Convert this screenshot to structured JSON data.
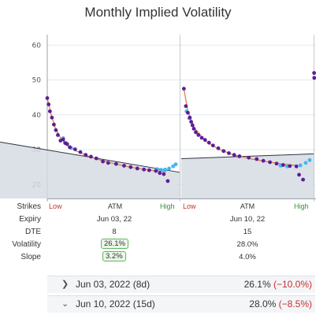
{
  "title": "Monthly Implied Volatility",
  "chart_data": {
    "type": "scatter",
    "ylim": [
      16,
      63
    ],
    "yticks": [
      20,
      30,
      40,
      50,
      60
    ],
    "grid": true,
    "panels": [
      {
        "x_labels": {
          "low": "Low",
          "atm": "ATM",
          "high": "High"
        },
        "smile_points": [
          [
            0.0,
            44.8
          ],
          [
            0.01,
            43.0
          ],
          [
            0.02,
            41.0
          ],
          [
            0.035,
            39.2
          ],
          [
            0.05,
            37.2
          ],
          [
            0.065,
            35.6
          ],
          [
            0.08,
            34.2
          ],
          [
            0.1,
            32.6
          ],
          [
            0.12,
            32.9
          ],
          [
            0.135,
            31.9
          ],
          [
            0.15,
            31.6
          ],
          [
            0.17,
            30.7
          ],
          [
            0.21,
            30.1
          ],
          [
            0.25,
            29.3
          ],
          [
            0.29,
            28.5
          ],
          [
            0.33,
            28.0
          ],
          [
            0.37,
            27.5
          ],
          [
            0.42,
            26.6
          ],
          [
            0.46,
            26.2
          ],
          [
            0.52,
            25.9
          ],
          [
            0.58,
            25.4
          ],
          [
            0.63,
            25.0
          ],
          [
            0.68,
            24.6
          ],
          [
            0.73,
            24.3
          ],
          [
            0.77,
            24.1
          ],
          [
            0.82,
            23.9
          ],
          [
            0.85,
            23.3
          ],
          [
            0.88,
            23.0
          ],
          [
            0.91,
            21.0
          ]
        ],
        "otm_points": [
          [
            0.12,
            33.3
          ],
          [
            0.14,
            31.9
          ],
          [
            0.18,
            30.5
          ],
          [
            0.83,
            24.4
          ],
          [
            0.86,
            24.2
          ],
          [
            0.89,
            24.3
          ],
          [
            0.92,
            24.6
          ],
          [
            0.95,
            25.2
          ],
          [
            0.97,
            25.8
          ]
        ],
        "fit_curve": [
          [
            0.0,
            44.8
          ],
          [
            0.03,
            40.0
          ],
          [
            0.06,
            36.3
          ],
          [
            0.1,
            33.4
          ],
          [
            0.15,
            31.3
          ],
          [
            0.22,
            29.6
          ],
          [
            0.3,
            28.3
          ],
          [
            0.4,
            27.0
          ],
          [
            0.5,
            26.0
          ],
          [
            0.6,
            25.2
          ],
          [
            0.7,
            24.5
          ],
          [
            0.8,
            24.0
          ],
          [
            0.9,
            23.7
          ]
        ],
        "slope_line": [
          [
            0.0,
            32.2
          ],
          [
            1.0,
            23.5
          ]
        ]
      },
      {
        "x_labels": {
          "low": "Low",
          "atm": "ATM",
          "high": "High"
        },
        "smile_points": [
          [
            0.02,
            47.5
          ],
          [
            0.035,
            42.5
          ],
          [
            0.05,
            40.6
          ],
          [
            0.065,
            39.2
          ],
          [
            0.075,
            38.0
          ],
          [
            0.085,
            37.0
          ],
          [
            0.095,
            36.0
          ],
          [
            0.11,
            35.0
          ],
          [
            0.13,
            34.2
          ],
          [
            0.155,
            33.4
          ],
          [
            0.18,
            32.8
          ],
          [
            0.21,
            32.0
          ],
          [
            0.24,
            31.2
          ],
          [
            0.28,
            30.4
          ],
          [
            0.32,
            29.6
          ],
          [
            0.36,
            29.0
          ],
          [
            0.4,
            28.5
          ],
          [
            0.44,
            28.1
          ],
          [
            0.51,
            27.7
          ],
          [
            0.57,
            27.3
          ],
          [
            0.62,
            26.8
          ],
          [
            0.67,
            26.4
          ],
          [
            0.72,
            26.0
          ],
          [
            0.77,
            25.6
          ],
          [
            0.82,
            25.3
          ],
          [
            0.87,
            25.2
          ],
          [
            0.89,
            22.8
          ],
          [
            0.92,
            21.4
          ]
        ],
        "otm_points": [
          [
            0.04,
            41.0
          ],
          [
            0.06,
            39.0
          ],
          [
            0.75,
            25.4
          ],
          [
            0.8,
            25.2
          ],
          [
            0.9,
            25.5
          ],
          [
            0.94,
            26.2
          ],
          [
            0.97,
            27.0
          ]
        ],
        "fit_curve": [
          [
            0.02,
            47.5
          ],
          [
            0.05,
            41.0
          ],
          [
            0.1,
            36.2
          ],
          [
            0.18,
            32.6
          ],
          [
            0.28,
            30.2
          ],
          [
            0.4,
            28.4
          ],
          [
            0.52,
            27.4
          ],
          [
            0.64,
            26.6
          ],
          [
            0.76,
            25.9
          ],
          [
            0.88,
            25.4
          ]
        ],
        "slope_line": [
          [
            0.0,
            27.4
          ],
          [
            1.0,
            28.8
          ]
        ]
      },
      {
        "smile_points": [
          [
            0.2,
            52.0
          ],
          [
            0.25,
            50.6
          ]
        ]
      }
    ]
  },
  "table": {
    "labels": [
      "Strikes",
      "Expiry",
      "DTE",
      "Volatility",
      "Slope"
    ],
    "columns": [
      {
        "low": "Low",
        "atm": "ATM",
        "high": "High",
        "expiry": "Jun 03, 22",
        "dte": "8",
        "volatility": "26.1%",
        "slope": "3.2%"
      },
      {
        "low": "Low",
        "atm": "ATM",
        "high": "High",
        "expiry": "Jun 10, 22",
        "dte": "15",
        "volatility": "28.0%",
        "slope": "4.0%"
      }
    ]
  },
  "bottom_rows": [
    {
      "label": "Jun 03, 2022 (8d)",
      "value": "26.1%",
      "change": "(−10.0%)"
    },
    {
      "label": "Jun 10, 2022 (15d)",
      "value": "28.0%",
      "change": "(−8.5%)"
    }
  ],
  "colors": {
    "smile": "#5b1e98",
    "otm": "#3fb6f0",
    "fit": "#e0783c",
    "slope": "#2e3440",
    "area": "#d6dbe3",
    "low": "#c9302c",
    "high": "#3a8f3a",
    "boxed_border": "#5cb85c"
  }
}
